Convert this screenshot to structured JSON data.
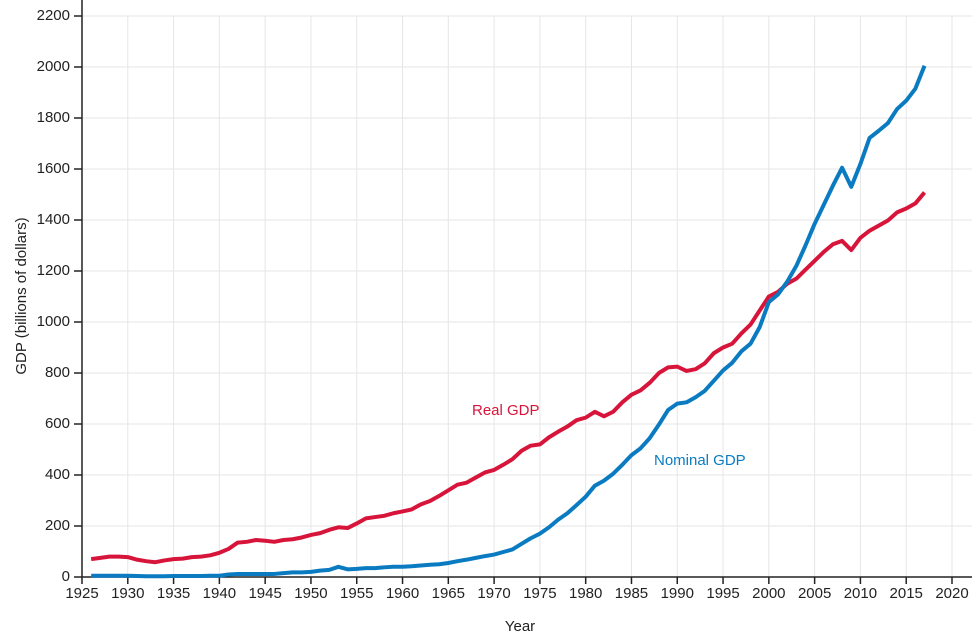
{
  "chart_data": {
    "type": "line",
    "x_label": "Year",
    "y_label": "GDP (billions of dollars)",
    "x": [
      1926,
      1927,
      1928,
      1929,
      1930,
      1931,
      1932,
      1933,
      1934,
      1935,
      1936,
      1937,
      1938,
      1939,
      1940,
      1941,
      1942,
      1943,
      1944,
      1945,
      1946,
      1947,
      1948,
      1949,
      1950,
      1951,
      1952,
      1953,
      1954,
      1955,
      1956,
      1957,
      1958,
      1959,
      1960,
      1961,
      1962,
      1963,
      1964,
      1965,
      1966,
      1967,
      1968,
      1969,
      1970,
      1971,
      1972,
      1973,
      1974,
      1975,
      1976,
      1977,
      1978,
      1979,
      1980,
      1981,
      1982,
      1983,
      1984,
      1985,
      1986,
      1987,
      1988,
      1989,
      1990,
      1991,
      1992,
      1993,
      1994,
      1995,
      1996,
      1997,
      1998,
      1999,
      2000,
      2001,
      2002,
      2003,
      2004,
      2005,
      2006,
      2007,
      2008,
      2009,
      2010,
      2011,
      2012,
      2013,
      2014,
      2015,
      2016,
      2017
    ],
    "series": [
      {
        "name": "Real GDP",
        "color": "#d7153a",
        "values": [
          70,
          75,
          80,
          80,
          78,
          68,
          62,
          58,
          65,
          70,
          72,
          78,
          80,
          85,
          95,
          110,
          135,
          138,
          145,
          142,
          138,
          145,
          148,
          155,
          165,
          172,
          185,
          195,
          192,
          210,
          230,
          235,
          240,
          250,
          257,
          265,
          285,
          298,
          318,
          340,
          362,
          370,
          390,
          410,
          420,
          440,
          462,
          495,
          515,
          520,
          548,
          570,
          590,
          615,
          625,
          648,
          630,
          648,
          685,
          715,
          732,
          762,
          800,
          822,
          825,
          808,
          815,
          838,
          878,
          900,
          915,
          955,
          990,
          1045,
          1100,
          1118,
          1150,
          1170,
          1205,
          1240,
          1275,
          1305,
          1318,
          1282,
          1330,
          1358,
          1378,
          1398,
          1430,
          1445,
          1465,
          1508
        ]
      },
      {
        "name": "Nominal GDP",
        "color": "#0a7bc1",
        "values": [
          5,
          5,
          5,
          5,
          5,
          4,
          3,
          3,
          3,
          4,
          4,
          4,
          4,
          5,
          5,
          10,
          12,
          12,
          12,
          12,
          12,
          15,
          18,
          18,
          20,
          25,
          28,
          40,
          30,
          32,
          35,
          35,
          38,
          40,
          40,
          42,
          45,
          48,
          50,
          55,
          62,
          68,
          75,
          82,
          88,
          98,
          108,
          130,
          152,
          170,
          195,
          225,
          250,
          282,
          315,
          358,
          378,
          405,
          440,
          478,
          505,
          545,
          598,
          655,
          680,
          685,
          705,
          730,
          770,
          810,
          840,
          885,
          915,
          980,
          1078,
          1108,
          1158,
          1220,
          1300,
          1385,
          1460,
          1535,
          1605,
          1530,
          1620,
          1722,
          1750,
          1780,
          1835,
          1868,
          1915,
          2005
        ]
      }
    ],
    "xlim": [
      1925,
      2020
    ],
    "xticks": [
      1925,
      1930,
      1935,
      1940,
      1945,
      1950,
      1955,
      1960,
      1965,
      1970,
      1975,
      1980,
      1985,
      1990,
      1995,
      2000,
      2005,
      2010,
      2015,
      2020
    ],
    "ylim": [
      0,
      2200
    ],
    "yticks": [
      0,
      200,
      400,
      600,
      800,
      1000,
      1200,
      1400,
      1600,
      1800,
      2000,
      2200
    ],
    "grid": true
  }
}
